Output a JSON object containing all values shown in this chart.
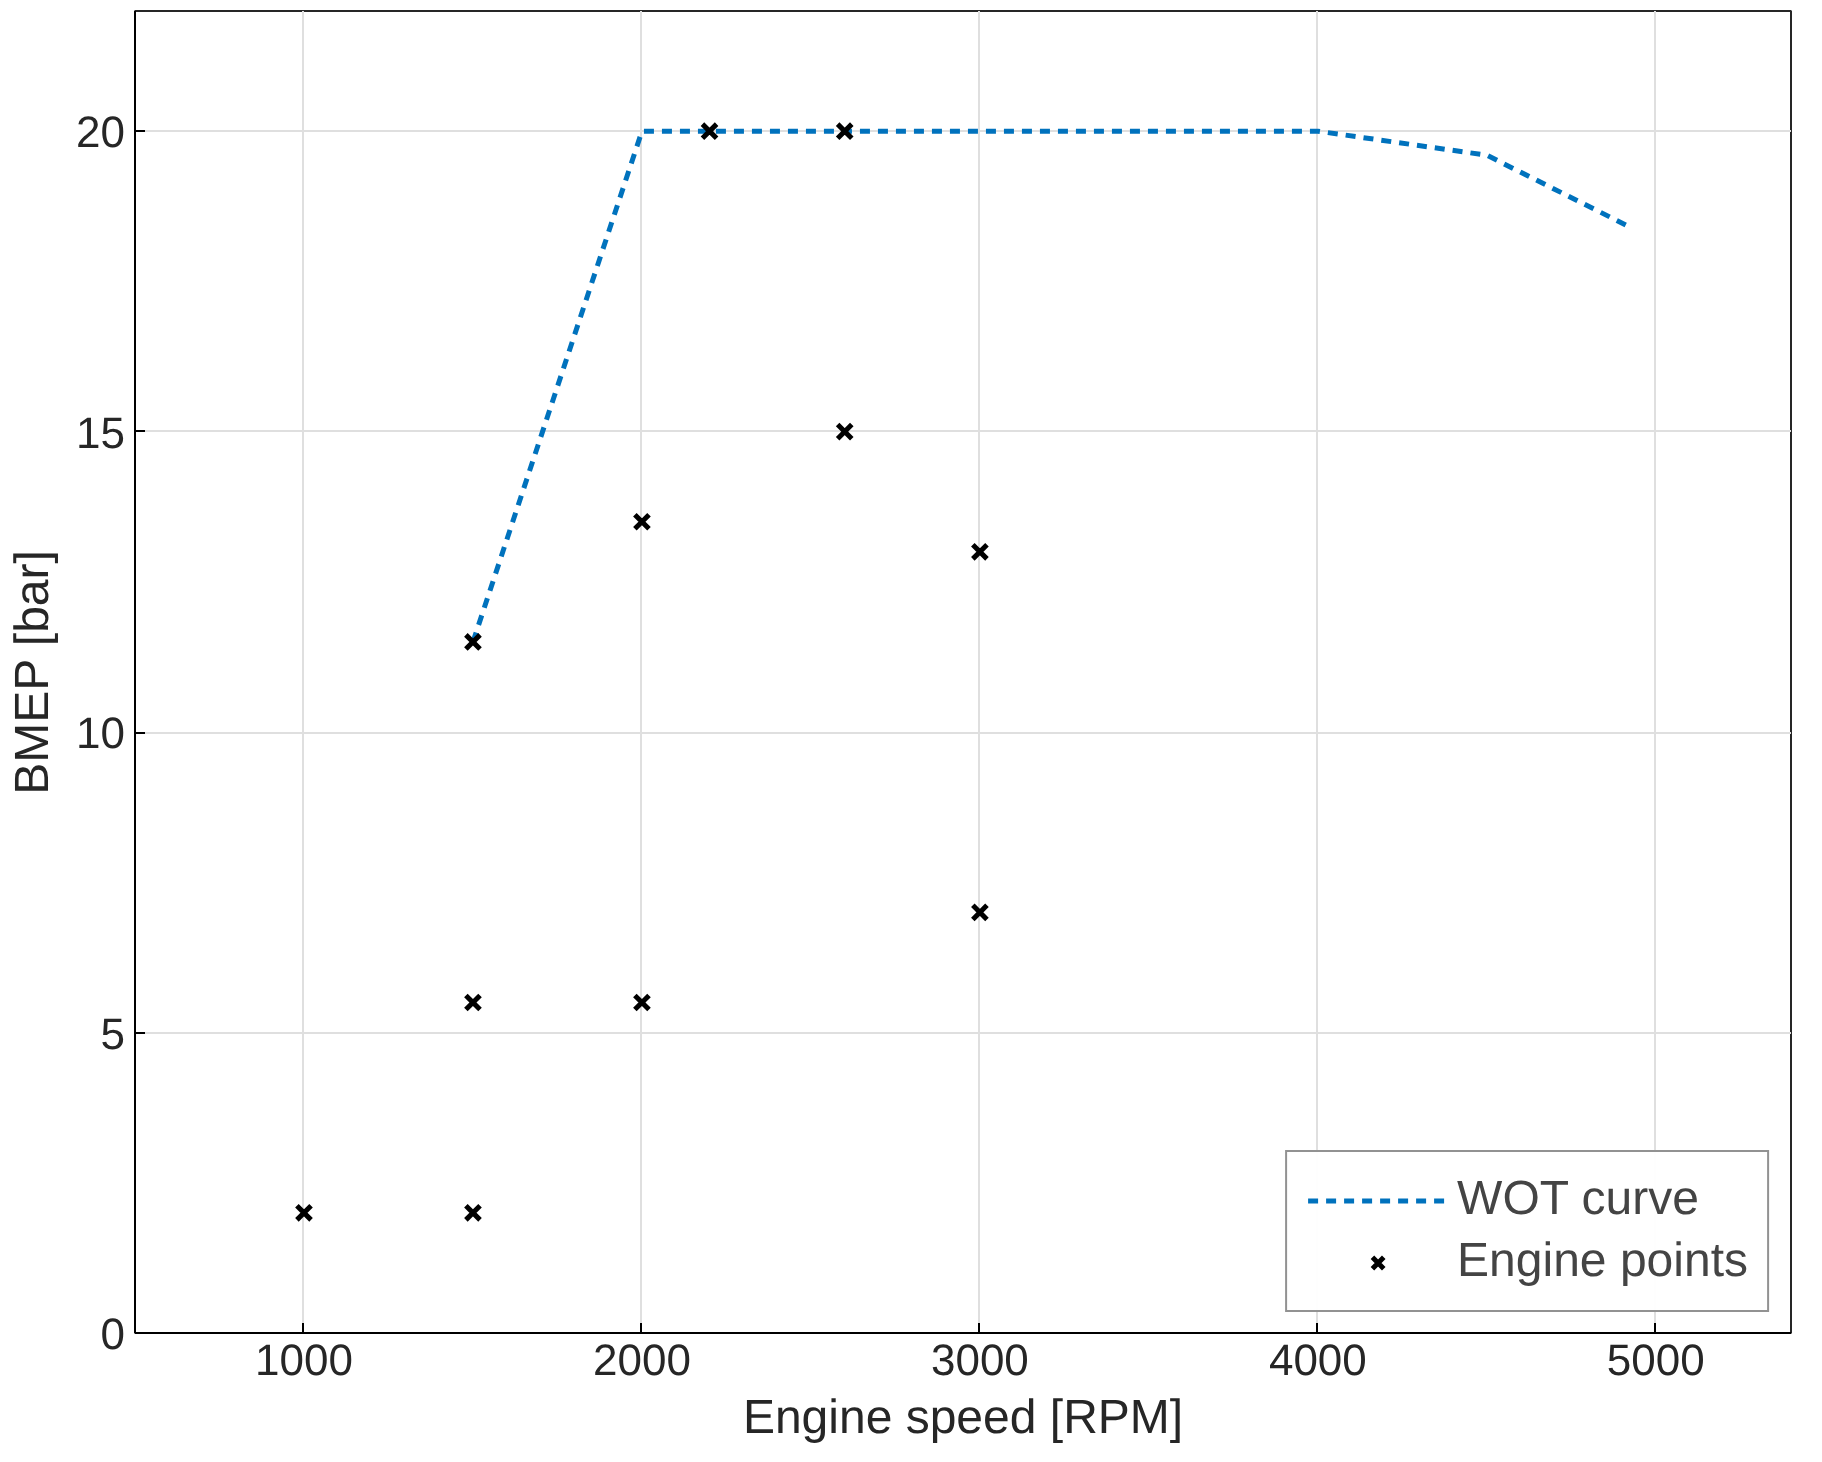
{
  "chart_data": {
    "type": "line",
    "xlabel": "Engine speed [RPM]",
    "ylabel": "BMEP [bar]",
    "xlim": [
      500,
      5400
    ],
    "ylim": [
      0,
      22
    ],
    "xticks": [
      1000,
      2000,
      3000,
      4000,
      5000
    ],
    "yticks": [
      0,
      5,
      10,
      15,
      20
    ],
    "grid": true,
    "legend": "bottom right",
    "series": [
      {
        "name": "WOT curve",
        "line_style": "dashed",
        "color": "#0072bd",
        "x": [
          1500,
          2000,
          4000,
          4500,
          4925
        ],
        "values": [
          11.5,
          20,
          20,
          19.6,
          18.4
        ]
      },
      {
        "name": "Engine points",
        "type": "scatter",
        "marker": "cross",
        "color": "#000000",
        "x": [
          1000,
          1500,
          1500,
          1500,
          2000,
          2000,
          2200,
          2600,
          2600,
          3000,
          3000
        ],
        "values": [
          2,
          2,
          5.5,
          11.5,
          5.5,
          13.5,
          20,
          20,
          15,
          13,
          7
        ]
      }
    ]
  }
}
